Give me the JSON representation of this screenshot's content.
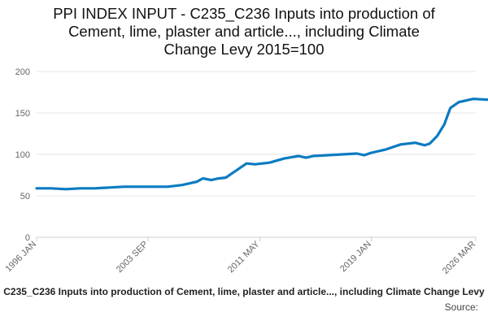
{
  "chart_data": {
    "type": "line",
    "title": "PPI INDEX INPUT - C235_C236 Inputs into production of\nCement, lime, plaster and article..., including Climate\nChange Levy 2015=100",
    "ylim": [
      0,
      200
    ],
    "yticks": [
      0,
      50,
      100,
      150,
      200
    ],
    "xlim": [
      "1996 JAN",
      "2026 MAR"
    ],
    "xtick_labels": [
      "1996 JAN",
      "2003 SEP",
      "2011 MAY",
      "2019 JAN",
      "2026 MAR"
    ],
    "grid": true,
    "line_color": "#0b7bc1",
    "series": [
      {
        "name": "C235_C236 Inputs into production of Cement, lime, plaster and article..., including Climate Change Levy",
        "points": [
          [
            "1996 JAN",
            59
          ],
          [
            "1997 JAN",
            59
          ],
          [
            "1998 JAN",
            58
          ],
          [
            "1999 JAN",
            59
          ],
          [
            "2000 JAN",
            59
          ],
          [
            "2001 JAN",
            60
          ],
          [
            "2002 JAN",
            61
          ],
          [
            "2003 JAN",
            61
          ],
          [
            "2004 JAN",
            61
          ],
          [
            "2005 JAN",
            61
          ],
          [
            "2006 JAN",
            63
          ],
          [
            "2007 JAN",
            67
          ],
          [
            "2007 JUN",
            71
          ],
          [
            "2008 JAN",
            69
          ],
          [
            "2008 JUL",
            71
          ],
          [
            "2009 JAN",
            72
          ],
          [
            "2010 JAN",
            84
          ],
          [
            "2010 JUN",
            89
          ],
          [
            "2011 JAN",
            88
          ],
          [
            "2012 JAN",
            90
          ],
          [
            "2013 JAN",
            95
          ],
          [
            "2014 JAN",
            98
          ],
          [
            "2014 JUL",
            96
          ],
          [
            "2015 JAN",
            98
          ],
          [
            "2016 JAN",
            99
          ],
          [
            "2017 JAN",
            100
          ],
          [
            "2018 JAN",
            101
          ],
          [
            "2018 JUL",
            99
          ],
          [
            "2019 JAN",
            102
          ],
          [
            "2020 JAN",
            106
          ],
          [
            "2021 JAN",
            112
          ],
          [
            "2022 JAN",
            114
          ],
          [
            "2022 SEP",
            111
          ],
          [
            "2023 JAN",
            113
          ],
          [
            "2023 JUL",
            122
          ],
          [
            "2024 JAN",
            136
          ],
          [
            "2024 JUN",
            156
          ],
          [
            "2025 JAN",
            163
          ],
          [
            "2026 JAN",
            167
          ],
          [
            "2027 JAN",
            166
          ],
          [
            "2028 JAN",
            166
          ],
          [
            "2028 JUN",
            167
          ]
        ]
      }
    ]
  },
  "footer": {
    "series_label": "C235_C236 Inputs into production of Cement, lime, plaster and article..., including Climate Change Levy",
    "source": "Source:"
  }
}
